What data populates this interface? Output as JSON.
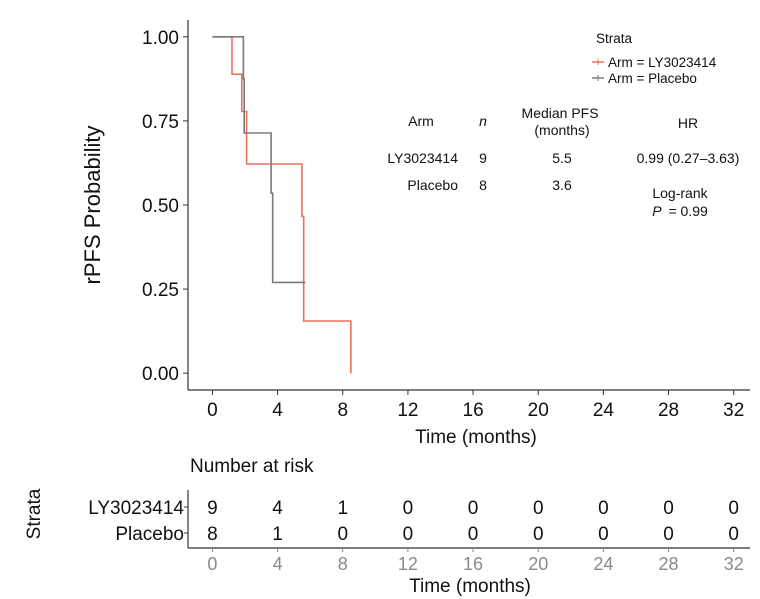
{
  "colors": {
    "ly": "#e8735a",
    "placebo": "#7a7a7a",
    "axis": "#333333",
    "risk_axis_ticks": "#8a8a8a"
  },
  "chart_data": {
    "type": "line",
    "subtype": "kaplan-meier",
    "ylabel": "rPFS Probability",
    "xlabel": "Time (months)",
    "xlim": [
      -1.5,
      33
    ],
    "ylim": [
      -0.05,
      1.05
    ],
    "x_ticks": [
      "0",
      "4",
      "8",
      "12",
      "16",
      "20",
      "24",
      "28",
      "32"
    ],
    "y_ticks": [
      "0.00",
      "0.25",
      "0.50",
      "0.75",
      "1.00"
    ],
    "grid": false,
    "legend": {
      "position": "top-right",
      "title": "Strata",
      "entries": [
        "Arm = LY3023414",
        "Arm = Placebo"
      ]
    },
    "series": [
      {
        "name": "Arm = LY3023414",
        "color_key": "ly",
        "points": [
          [
            0,
            1.0
          ],
          [
            1.2,
            1.0
          ],
          [
            1.2,
            0.889
          ],
          [
            1.8,
            0.889
          ],
          [
            1.8,
            0.778
          ],
          [
            2.1,
            0.778
          ],
          [
            2.1,
            0.622
          ],
          [
            5.5,
            0.622
          ],
          [
            5.5,
            0.466
          ],
          [
            5.6,
            0.466
          ],
          [
            5.6,
            0.155
          ],
          [
            8.5,
            0.155
          ],
          [
            8.5,
            0.0
          ]
        ]
      },
      {
        "name": "Arm = Placebo",
        "color_key": "placebo",
        "points": [
          [
            0,
            1.0
          ],
          [
            1.9,
            1.0
          ],
          [
            1.9,
            0.875
          ],
          [
            1.95,
            0.875
          ],
          [
            1.95,
            0.714
          ],
          [
            3.6,
            0.714
          ],
          [
            3.6,
            0.535
          ],
          [
            3.7,
            0.535
          ],
          [
            3.7,
            0.27
          ],
          [
            5.7,
            0.27
          ]
        ]
      }
    ],
    "stats_table": {
      "headers": [
        "Arm",
        "n",
        "Median PFS\n(months)",
        "HR"
      ],
      "rows": [
        [
          "LY3023414",
          "9",
          "5.5",
          "0.99 (0.27–3.63)"
        ],
        [
          "Placebo",
          "8",
          "3.6",
          ""
        ]
      ],
      "logrank_label": "Log-rank",
      "p_label": "P",
      "p_value": "= 0.99"
    },
    "risk_table": {
      "title": "Number at risk",
      "strata_label": "Strata",
      "xlabel": "Time (months)",
      "times": [
        "0",
        "4",
        "8",
        "12",
        "16",
        "20",
        "24",
        "28",
        "32"
      ],
      "rows": [
        {
          "name": "LY3023414",
          "color_key": "ly",
          "counts": [
            "9",
            "4",
            "1",
            "0",
            "0",
            "0",
            "0",
            "0",
            "0"
          ]
        },
        {
          "name": "Placebo",
          "color_key": "placebo",
          "counts": [
            "8",
            "1",
            "0",
            "0",
            "0",
            "0",
            "0",
            "0",
            "0"
          ]
        }
      ]
    }
  }
}
